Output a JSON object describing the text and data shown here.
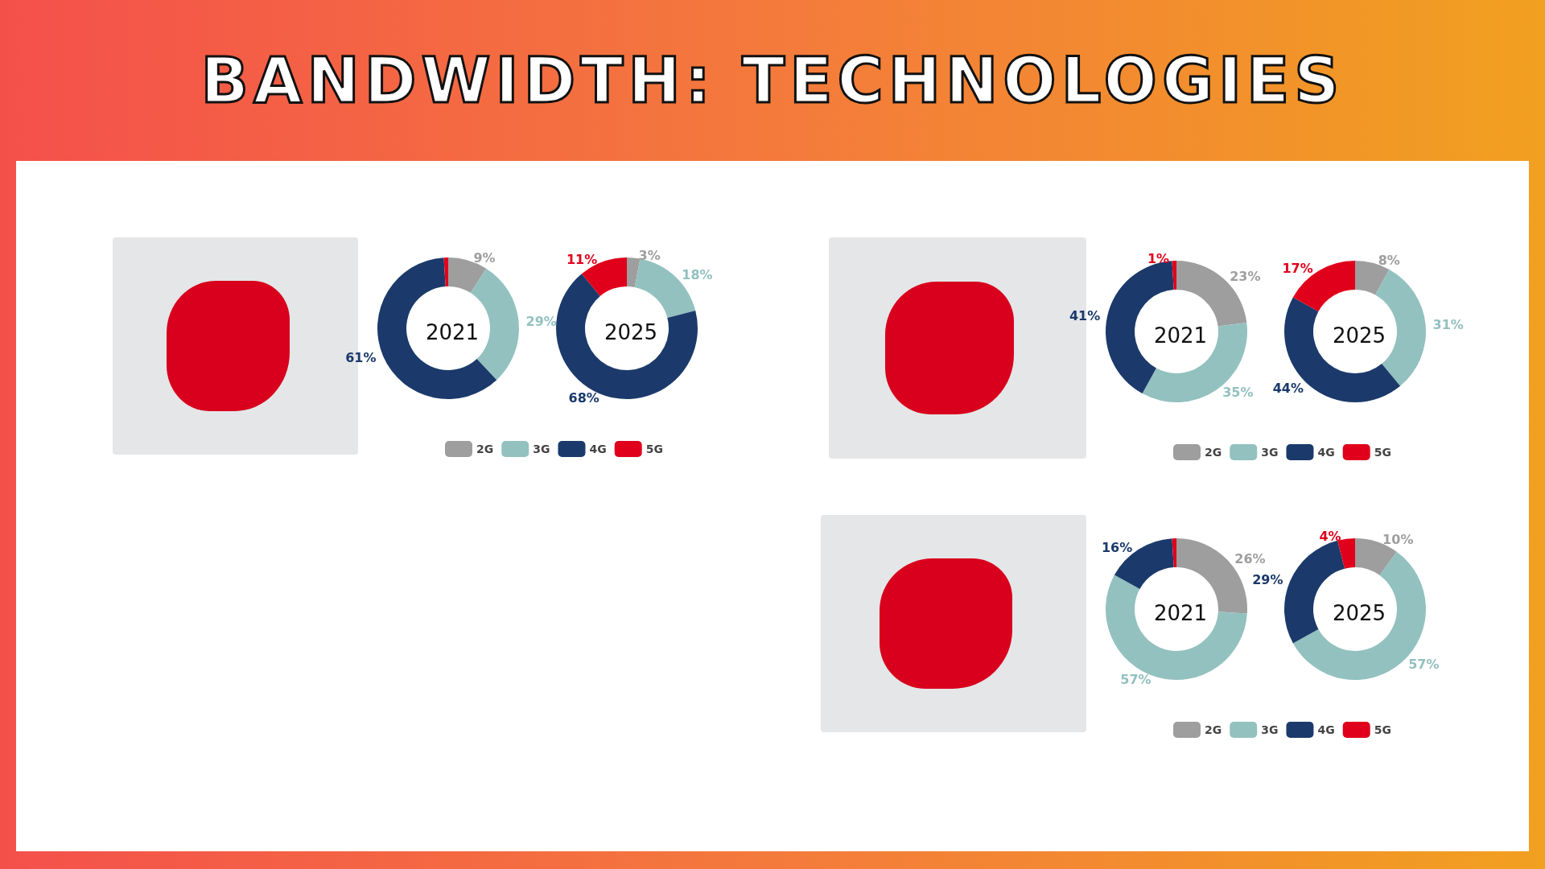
{
  "chart_data": [
    {
      "type": "other",
      "title": "BANDWIDTH: TECHNOLOGIES"
    },
    {
      "type": "donut",
      "categories": [
        "2G",
        "3G",
        "4G",
        "5G"
      ],
      "colors": [
        "#9e9e9e",
        "#93c1bf",
        "#1b3a6b",
        "#e0001b"
      ],
      "legend": "bottom",
      "series": [
        {
          "name": "2021",
          "values": [
            9,
            29,
            61,
            1
          ],
          "value_labels": [
            "9%",
            "29%",
            "61%",
            null
          ]
        },
        {
          "name": "2025",
          "values": [
            3,
            18,
            68,
            11
          ],
          "value_labels": [
            "3%",
            "18%",
            "68%",
            "11%"
          ]
        }
      ]
    },
    {
      "type": "donut",
      "categories": [
        "2G",
        "3G",
        "4G",
        "5G"
      ],
      "colors": [
        "#9e9e9e",
        "#93c1bf",
        "#1b3a6b",
        "#e0001b"
      ],
      "legend": "bottom",
      "series": [
        {
          "name": "2021",
          "values": [
            23,
            35,
            41,
            1
          ],
          "value_labels": [
            "23%",
            "35%",
            "41%",
            "1%"
          ]
        },
        {
          "name": "2025",
          "values": [
            8,
            31,
            44,
            17
          ],
          "value_labels": [
            "8%",
            "31%",
            "44%",
            "17%"
          ]
        }
      ]
    },
    {
      "type": "donut",
      "categories": [
        "2G",
        "3G",
        "4G",
        "5G"
      ],
      "colors": [
        "#9e9e9e",
        "#93c1bf",
        "#1b3a6b",
        "#e0001b"
      ],
      "legend": "bottom",
      "series": [
        {
          "name": "2021",
          "values": [
            26,
            57,
            16,
            1
          ],
          "value_labels": [
            "26%",
            "57%",
            "16%",
            null
          ]
        },
        {
          "name": "2025",
          "values": [
            10,
            57,
            29,
            4
          ],
          "value_labels": [
            "10%",
            "57%",
            "29%",
            "4%"
          ]
        }
      ]
    }
  ]
}
